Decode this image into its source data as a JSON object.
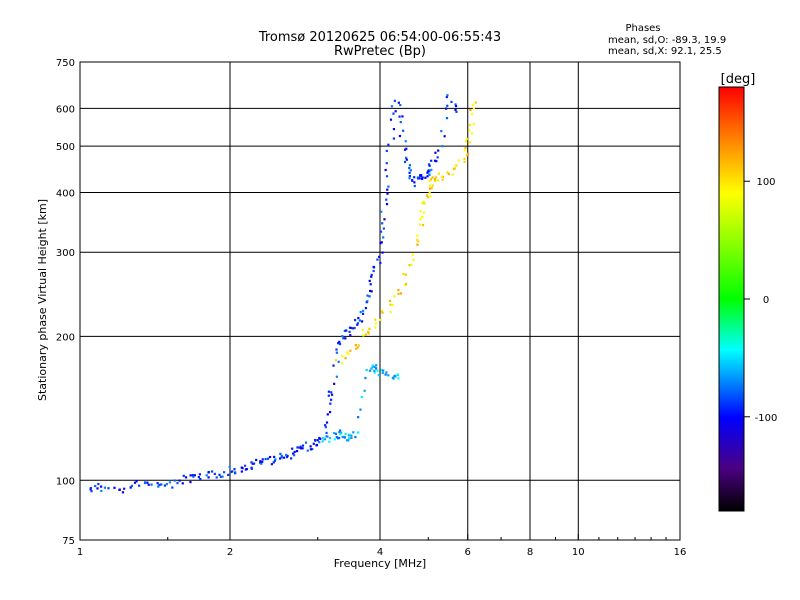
{
  "chart_data": {
    "type": "scatter",
    "title": "Tromsø 20120625 06:54:00-06:55:43",
    "subtitle": "RwPretec (Bp)",
    "xlabel": "Frequency [MHz]",
    "ylabel": "Stationary phase Virtual Height [km]",
    "x_scale": "log",
    "y_scale": "log",
    "xlim": [
      1,
      16
    ],
    "ylim": [
      75,
      750
    ],
    "x_ticks": [
      1,
      2,
      4,
      6,
      8,
      10,
      16
    ],
    "x_tick_labels": [
      "1",
      "2",
      "4",
      "6",
      "8",
      "10",
      "16"
    ],
    "y_ticks": [
      75,
      100,
      200,
      300,
      400,
      500,
      600,
      750
    ],
    "y_tick_labels": [
      "75",
      "100",
      "200",
      "300",
      "400",
      "500",
      "600",
      "750"
    ],
    "phase_info": {
      "heading": "Phases",
      "o_line": "mean, sd,O: -89.3, 19.9",
      "x_line": "mean, sd,X:  92.1, 25.5"
    },
    "colorbar": {
      "label": "[deg]",
      "range": [
        -180,
        180
      ],
      "ticks": [
        100,
        0,
        -100
      ],
      "tick_labels": [
        "100",
        "0",
        "-100"
      ]
    },
    "series": [
      {
        "name": "O-mode trace (blue)",
        "phase_deg": -90,
        "points": [
          [
            1.05,
            96
          ],
          [
            1.1,
            97
          ],
          [
            1.2,
            95
          ],
          [
            1.3,
            98
          ],
          [
            1.4,
            99
          ],
          [
            1.5,
            97
          ],
          [
            1.6,
            100
          ],
          [
            1.7,
            101
          ],
          [
            1.8,
            102
          ],
          [
            1.9,
            103
          ],
          [
            2.0,
            105
          ],
          [
            2.1,
            105
          ],
          [
            2.2,
            107
          ],
          [
            2.3,
            109
          ],
          [
            2.4,
            110
          ],
          [
            2.5,
            112
          ],
          [
            2.6,
            112
          ],
          [
            2.7,
            115
          ],
          [
            2.8,
            117
          ],
          [
            2.9,
            118
          ],
          [
            3.0,
            120
          ],
          [
            3.1,
            122
          ],
          [
            3.15,
            140
          ],
          [
            3.2,
            155
          ],
          [
            3.3,
            190
          ],
          [
            3.4,
            200
          ],
          [
            3.5,
            205
          ],
          [
            3.6,
            215
          ],
          [
            3.7,
            225
          ],
          [
            3.8,
            250
          ],
          [
            3.9,
            270
          ],
          [
            4.0,
            300
          ],
          [
            4.05,
            350
          ],
          [
            4.1,
            400
          ],
          [
            4.2,
            500
          ],
          [
            4.3,
            620
          ],
          [
            4.4,
            560
          ],
          [
            4.5,
            470
          ],
          [
            4.6,
            440
          ],
          [
            4.7,
            420
          ],
          [
            4.8,
            430
          ],
          [
            4.9,
            430
          ],
          [
            5.0,
            440
          ],
          [
            5.1,
            460
          ],
          [
            5.3,
            500
          ],
          [
            5.5,
            640
          ],
          [
            5.7,
            600
          ]
        ]
      },
      {
        "name": "X-mode trace (yellow)",
        "phase_deg": 100,
        "points": [
          [
            3.3,
            175
          ],
          [
            3.5,
            185
          ],
          [
            3.7,
            200
          ],
          [
            3.9,
            215
          ],
          [
            4.2,
            230
          ],
          [
            4.4,
            250
          ],
          [
            4.6,
            285
          ],
          [
            4.8,
            330
          ],
          [
            4.9,
            370
          ],
          [
            5.0,
            400
          ],
          [
            5.1,
            420
          ],
          [
            5.2,
            430
          ],
          [
            5.5,
            440
          ],
          [
            5.8,
            460
          ],
          [
            6.0,
            500
          ],
          [
            6.1,
            550
          ],
          [
            6.2,
            620
          ]
        ]
      },
      {
        "name": "Low-altitude branch (light blue)",
        "phase_deg": -60,
        "points": [
          [
            3.1,
            120
          ],
          [
            3.2,
            123
          ],
          [
            3.3,
            125
          ],
          [
            3.4,
            122
          ],
          [
            3.5,
            124
          ],
          [
            3.6,
            126
          ],
          [
            3.8,
            170
          ],
          [
            3.9,
            172
          ],
          [
            4.0,
            168
          ],
          [
            4.2,
            166
          ],
          [
            4.4,
            164
          ]
        ]
      }
    ]
  }
}
